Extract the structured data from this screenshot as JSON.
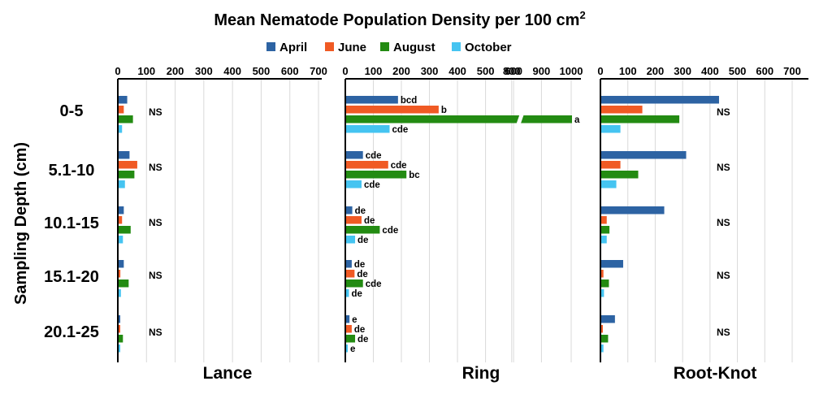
{
  "chart_data": {
    "type": "bar",
    "orientation": "horizontal",
    "title": "Mean Nematode Population Density per 100 cm",
    "title_superscript": "2",
    "ylabel": "Sampling Depth (cm)",
    "categories": [
      "0-5",
      "5.1-10",
      "10.1-15",
      "15.1-20",
      "20.1-25"
    ],
    "series_names": [
      "April",
      "June",
      "August",
      "October"
    ],
    "colors": {
      "April": "#2D63A3",
      "June": "#F05A24",
      "August": "#238B12",
      "October": "#45C4F1"
    },
    "legend_position": "top-center",
    "grid": true,
    "panels": [
      {
        "name": "Lance",
        "xlim": [
          0,
          700
        ],
        "ticks": [
          "0",
          "100",
          "200",
          "300",
          "400",
          "500",
          "600",
          "700"
        ],
        "series": [
          {
            "name": "April",
            "values": [
              30,
              38,
              18,
              18,
              5
            ]
          },
          {
            "name": "June",
            "values": [
              18,
              65,
              12,
              6,
              2
            ]
          },
          {
            "name": "August",
            "values": [
              50,
              55,
              42,
              35,
              15
            ]
          },
          {
            "name": "October",
            "values": [
              12,
              22,
              15,
              8,
              3
            ]
          }
        ],
        "group_labels": [
          "NS",
          "NS",
          "NS",
          "NS",
          "NS"
        ]
      },
      {
        "name": "Ring",
        "xlim": [
          0,
          1000
        ],
        "axis_break": [
          600,
          850
        ],
        "ticks": [
          "0",
          "100",
          "200",
          "300",
          "400",
          "500",
          "600",
          "800",
          "900",
          "1000"
        ],
        "series": [
          {
            "name": "April",
            "values": [
              185,
              60,
              22,
              20,
              12
            ]
          },
          {
            "name": "June",
            "values": [
              330,
              150,
              55,
              30,
              20
            ]
          },
          {
            "name": "August",
            "values": [
              1000,
              215,
              120,
              60,
              32
            ]
          },
          {
            "name": "October",
            "values": [
              155,
              55,
              32,
              10,
              3
            ]
          }
        ],
        "bar_labels": [
          [
            "bcd",
            "b",
            "a",
            "cde"
          ],
          [
            "cde",
            "cde",
            "bc",
            "cde"
          ],
          [
            "de",
            "de",
            "cde",
            "de"
          ],
          [
            "de",
            "de",
            "cde",
            "de"
          ],
          [
            "e",
            "de",
            "de",
            "e"
          ]
        ]
      },
      {
        "name": "Root-Knot",
        "xlim": [
          0,
          700
        ],
        "ticks": [
          "0",
          "100",
          "200",
          "300",
          "400",
          "500",
          "600",
          "700"
        ],
        "series": [
          {
            "name": "April",
            "values": [
              430,
              310,
              230,
              80,
              50
            ]
          },
          {
            "name": "June",
            "values": [
              150,
              70,
              20,
              8,
              5
            ]
          },
          {
            "name": "August",
            "values": [
              285,
              135,
              30,
              28,
              25
            ]
          },
          {
            "name": "October",
            "values": [
              70,
              55,
              20,
              10,
              8
            ]
          }
        ],
        "group_labels": [
          "NS",
          "NS",
          "NS",
          "NS",
          "NS"
        ]
      }
    ]
  }
}
